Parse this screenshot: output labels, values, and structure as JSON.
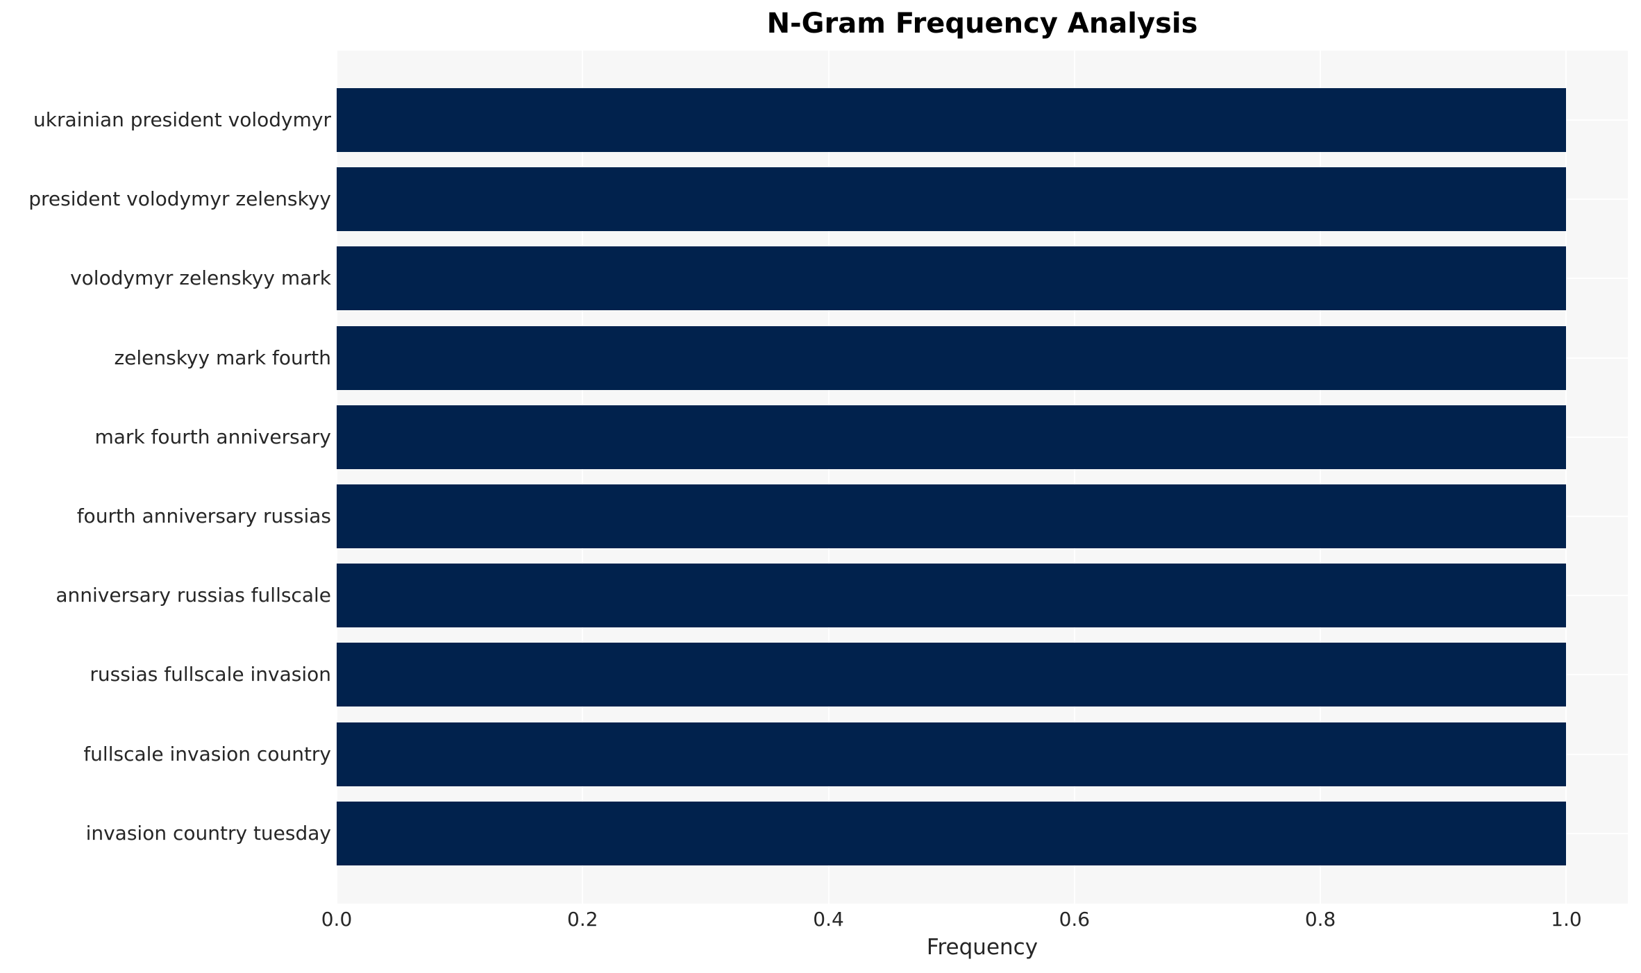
{
  "chart_data": {
    "type": "bar",
    "orientation": "horizontal",
    "title": "N-Gram Frequency Analysis",
    "xlabel": "Frequency",
    "ylabel": "",
    "categories": [
      "ukrainian president volodymyr",
      "president volodymyr zelenskyy",
      "volodymyr zelenskyy mark",
      "zelenskyy mark fourth",
      "mark fourth anniversary",
      "fourth anniversary russias",
      "anniversary russias fullscale",
      "russias fullscale invasion",
      "fullscale invasion country",
      "invasion country tuesday"
    ],
    "values": [
      1.0,
      1.0,
      1.0,
      1.0,
      1.0,
      1.0,
      1.0,
      1.0,
      1.0,
      1.0
    ],
    "x_ticks": [
      0.0,
      0.2,
      0.4,
      0.6,
      0.8,
      1.0
    ],
    "x_tick_labels": [
      "0.0",
      "0.2",
      "0.4",
      "0.6",
      "0.8",
      "1.0"
    ],
    "xlim": [
      0,
      1.05
    ],
    "grid": true,
    "legend": false,
    "colors": {
      "bar": "#01224d",
      "plot_background": "#f7f7f7",
      "gridline": "#ffffff",
      "tick_text": "#262626",
      "title_text": "#000000"
    }
  }
}
